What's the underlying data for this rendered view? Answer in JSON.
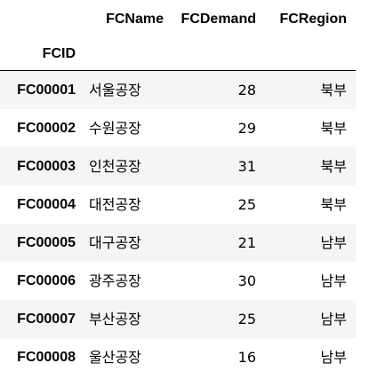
{
  "table": {
    "columns": [
      "FCName",
      "FCDemand",
      "FCRegion"
    ],
    "index_name": "FCID",
    "rows": [
      {
        "id": "FC00001",
        "name": "서울공장",
        "demand": "28",
        "region": "북부"
      },
      {
        "id": "FC00002",
        "name": "수원공장",
        "demand": "29",
        "region": "북부"
      },
      {
        "id": "FC00003",
        "name": "인천공장",
        "demand": "31",
        "region": "북부"
      },
      {
        "id": "FC00004",
        "name": "대전공장",
        "demand": "25",
        "region": "북부"
      },
      {
        "id": "FC00005",
        "name": "대구공장",
        "demand": "21",
        "region": "남부"
      },
      {
        "id": "FC00006",
        "name": "광주공장",
        "demand": "30",
        "region": "남부"
      },
      {
        "id": "FC00007",
        "name": "부산공장",
        "demand": "25",
        "region": "남부"
      },
      {
        "id": "FC00008",
        "name": "울산공장",
        "demand": "16",
        "region": "남부"
      }
    ]
  },
  "colors": {
    "stripe": "#f5f5f5",
    "text": "#000000",
    "rule": "#000000"
  }
}
